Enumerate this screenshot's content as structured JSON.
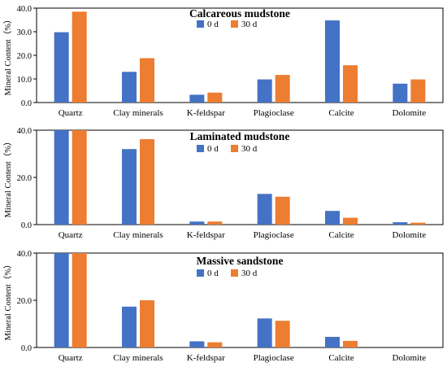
{
  "colors": {
    "series_0d": "#4472C4",
    "series_30d": "#ED7D31",
    "axis": "#000000"
  },
  "chart_data": [
    {
      "type": "bar",
      "title": "Calcareous mudstone",
      "ylabel": "Mineral Content（%）",
      "categories": [
        "Quartz",
        "Clay minerals",
        "K-feldspar",
        "Plagioclase",
        "Calcite",
        "Dolomite"
      ],
      "ylim": [
        0,
        40
      ],
      "yticks": [
        "0.0",
        "10.0",
        "20.0",
        "30.0",
        "40.0"
      ],
      "legend": "top-center",
      "grid": false,
      "series": [
        {
          "name": "0 d",
          "values": [
            29.8,
            13.0,
            3.3,
            9.8,
            34.8,
            8.0
          ]
        },
        {
          "name": "30 d",
          "values": [
            38.5,
            18.8,
            4.2,
            11.7,
            15.8,
            9.8
          ]
        }
      ]
    },
    {
      "type": "bar",
      "title": "Laminated mudstone",
      "ylabel": "Mineral Content（%）",
      "categories": [
        "Quartz",
        "Clay minerals",
        "K-feldspar",
        "Plagioclase",
        "Calcite",
        "Dolomite"
      ],
      "ylim": [
        0,
        40
      ],
      "yticks": [
        "0.0",
        "20.0",
        "40.0"
      ],
      "legend": "top-center",
      "grid": false,
      "series": [
        {
          "name": "0 d",
          "values": [
            40.0,
            32.0,
            1.3,
            13.0,
            5.8,
            1.0
          ]
        },
        {
          "name": "30 d",
          "values": [
            40.0,
            36.2,
            1.3,
            11.8,
            2.9,
            0.8
          ]
        }
      ]
    },
    {
      "type": "bar",
      "title": "Massive sandstone",
      "ylabel": "Mineral Content（%）",
      "categories": [
        "Quartz",
        "Clay minerals",
        "K-feldspar",
        "Plagioclase",
        "Calcite",
        "Dolomite"
      ],
      "ylim": [
        0,
        40
      ],
      "yticks": [
        "0.0",
        "20.0",
        "40.0"
      ],
      "legend": "top-center",
      "grid": false,
      "series": [
        {
          "name": "0 d",
          "values": [
            40.0,
            17.3,
            2.6,
            12.3,
            4.5,
            0
          ]
        },
        {
          "name": "30 d",
          "values": [
            40.0,
            20.0,
            2.2,
            11.3,
            2.8,
            0
          ]
        }
      ]
    }
  ]
}
